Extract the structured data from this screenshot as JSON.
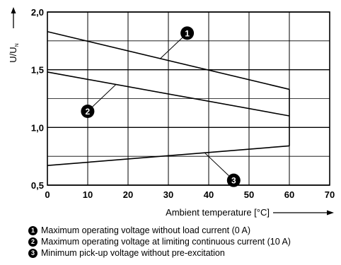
{
  "chart_data": {
    "type": "line",
    "xlabel": "Ambient temperature [°C]",
    "ylabel": "U/U",
    "ylabel_subscript": "N",
    "xlim": [
      0,
      70
    ],
    "ylim": [
      0.5,
      2.0
    ],
    "xticks": [
      "0",
      "10",
      "20",
      "30",
      "40",
      "50",
      "60",
      "70"
    ],
    "yticks": [
      "0,5",
      "1,0",
      "1,5",
      "2,0"
    ],
    "grid": true,
    "series": [
      {
        "marker": "1",
        "x": [
          0,
          60
        ],
        "y": [
          1.83,
          1.33
        ]
      },
      {
        "marker": "2",
        "x": [
          0,
          60
        ],
        "y": [
          1.48,
          1.1
        ]
      },
      {
        "marker": "3",
        "x": [
          0,
          60
        ],
        "y": [
          0.67,
          0.84
        ]
      }
    ],
    "connector": {
      "x": [
        60,
        60
      ],
      "y": [
        0.84,
        1.33
      ]
    },
    "callouts": [
      {
        "marker": "1",
        "series": 0,
        "at_x": 28
      },
      {
        "marker": "2",
        "series": 1,
        "at_x": 17
      },
      {
        "marker": "3",
        "series": 2,
        "at_x": 39
      }
    ]
  },
  "legend": [
    {
      "marker": "1",
      "text": "Maximum operating voltage without load current (0 A)"
    },
    {
      "marker": "2",
      "text": "Maximum operating voltage at limiting continuous current (10 A)"
    },
    {
      "marker": "3",
      "text": "Minimum pick-up voltage without pre-excitation"
    }
  ]
}
